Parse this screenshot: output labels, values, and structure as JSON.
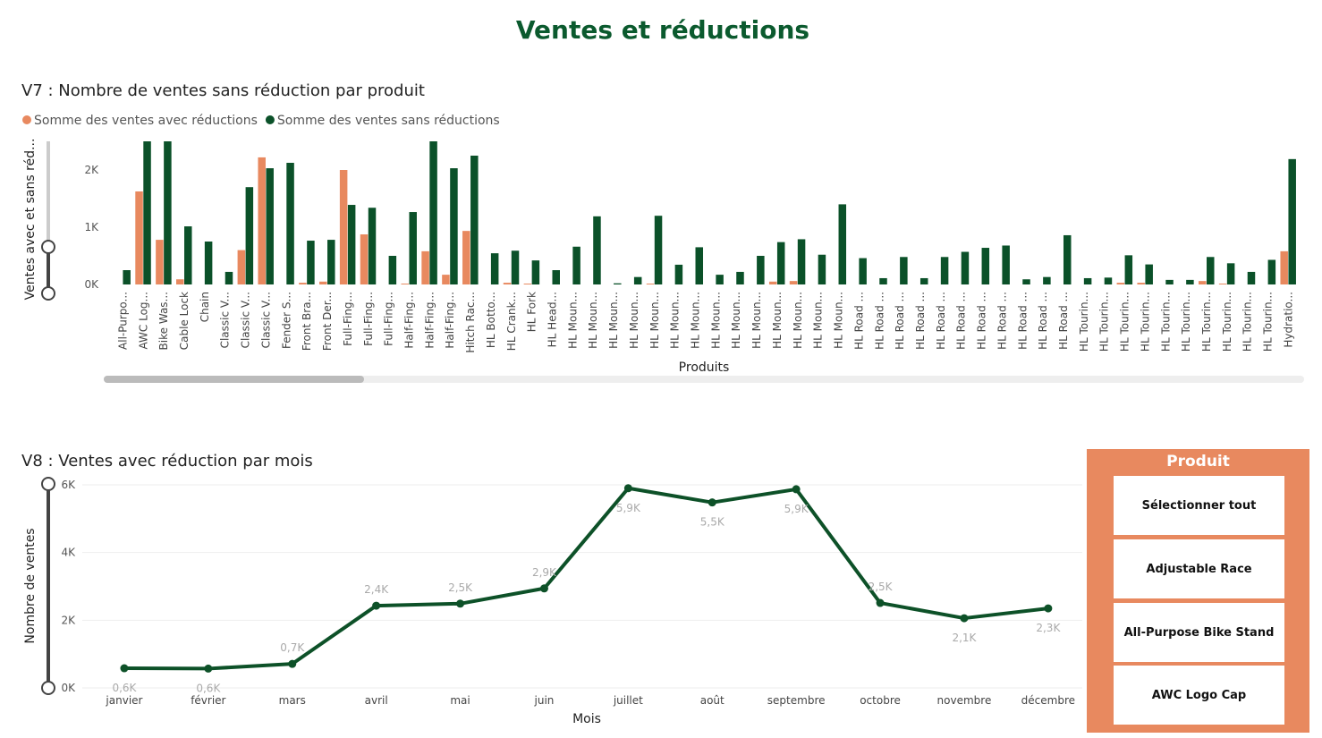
{
  "title": "Ventes et réductions",
  "chart_data": [
    {
      "type": "bar",
      "title": "V7 : Nombre de ventes sans réduction par produit",
      "x_label": "Produits",
      "y_label": "Ventes avec et sans réd...",
      "categories": [
        "All-Purpo...",
        "AWC Log...",
        "Bike Was...",
        "Cable Lock",
        "Chain",
        "Classic V...",
        "Classic V...",
        "Classic V...",
        "Fender S...",
        "Front Bra...",
        "Front Der...",
        "Full-Fing...",
        "Full-Fing...",
        "Full-Fing...",
        "Half-Fing...",
        "Half-Fing...",
        "Half-Fing...",
        "Hitch Rac...",
        "HL Botto...",
        "HL Crank...",
        "HL Fork",
        "HL Head...",
        "HL Moun...",
        "HL Moun...",
        "HL Moun...",
        "HL Moun...",
        "HL Moun...",
        "HL Moun...",
        "HL Moun...",
        "HL Moun...",
        "HL Moun...",
        "HL Moun...",
        "HL Moun...",
        "HL Moun...",
        "HL Moun...",
        "HL Moun...",
        "HL Road ...",
        "HL Road ...",
        "HL Road ...",
        "HL Road ...",
        "HL Road ...",
        "HL Road ...",
        "HL Road ...",
        "HL Road ...",
        "HL Road ...",
        "HL Road ...",
        "HL Road ...",
        "HL Tourin...",
        "HL Tourin...",
        "HL Tourin...",
        "HL Tourin...",
        "HL Tourin...",
        "HL Tourin...",
        "HL Tourin...",
        "HL Tourin...",
        "HL Tourin...",
        "HL Tourin...",
        "Hydratio..."
      ],
      "series": [
        {
          "name": "Somme des ventes avec réductions",
          "color": "#e8895f",
          "values": [
            0,
            1625,
            780,
            90,
            0,
            0,
            600,
            2220,
            0,
            30,
            50,
            2000,
            875,
            0,
            15,
            580,
            170,
            935,
            0,
            30,
            15,
            0,
            0,
            0,
            0,
            0,
            15,
            0,
            0,
            0,
            0,
            0,
            50,
            60,
            0,
            0,
            0,
            0,
            0,
            0,
            0,
            0,
            0,
            0,
            0,
            0,
            0,
            0,
            0,
            30,
            30,
            0,
            0,
            60,
            15,
            0,
            0,
            580
          ]
        },
        {
          "name": "Somme des ventes sans réductions",
          "color": "#0b5129",
          "values": [
            250,
            2500,
            2500,
            1015,
            750,
            220,
            1700,
            2030,
            2125,
            765,
            780,
            1390,
            1340,
            500,
            1265,
            2500,
            2030,
            2250,
            545,
            590,
            420,
            250,
            660,
            1190,
            20,
            130,
            1200,
            345,
            650,
            170,
            220,
            500,
            740,
            790,
            520,
            1400,
            460,
            110,
            480,
            110,
            480,
            570,
            640,
            680,
            90,
            130,
            860,
            110,
            120,
            510,
            350,
            80,
            80,
            480,
            370,
            220,
            430,
            2190
          ]
        }
      ],
      "ylim": [
        0,
        2500
      ],
      "yticks": [
        {
          "value": 0,
          "label": "0K"
        },
        {
          "value": 1000,
          "label": "1K"
        },
        {
          "value": 2000,
          "label": "2K"
        }
      ],
      "legend": "top-left"
    },
    {
      "type": "line",
      "title": "V8 : Ventes avec réduction par mois",
      "x_label": "Mois",
      "y_label": "Nombre de ventes",
      "categories": [
        "janvier",
        "février",
        "mars",
        "avril",
        "mai",
        "juin",
        "juillet",
        "août",
        "septembre",
        "octobre",
        "novembre",
        "décembre"
      ],
      "series": [
        {
          "name": "Ventes avec réduction",
          "color": "#0d5128",
          "values": [
            580,
            570,
            710,
            2430,
            2490,
            2940,
            5900,
            5480,
            5870,
            2510,
            2060,
            2350
          ],
          "value_labels": [
            "0,6K",
            "0,6K",
            "0,7K",
            "2,4K",
            "2,5K",
            "2,9K",
            "5,9K",
            "5,5K",
            "5,9K",
            "2,5K",
            "2,1K",
            "2,3K"
          ]
        }
      ],
      "ylim": [
        0,
        6000
      ],
      "yticks": [
        {
          "value": 0,
          "label": "0K"
        },
        {
          "value": 2000,
          "label": "2K"
        },
        {
          "value": 4000,
          "label": "4K"
        },
        {
          "value": 6000,
          "label": "6K"
        }
      ],
      "grid": true
    }
  ],
  "slicer": {
    "title": "Produit",
    "items": [
      "Sélectionner tout",
      "Adjustable Race",
      "All-Purpose Bike Stand",
      "AWC Logo Cap"
    ]
  }
}
